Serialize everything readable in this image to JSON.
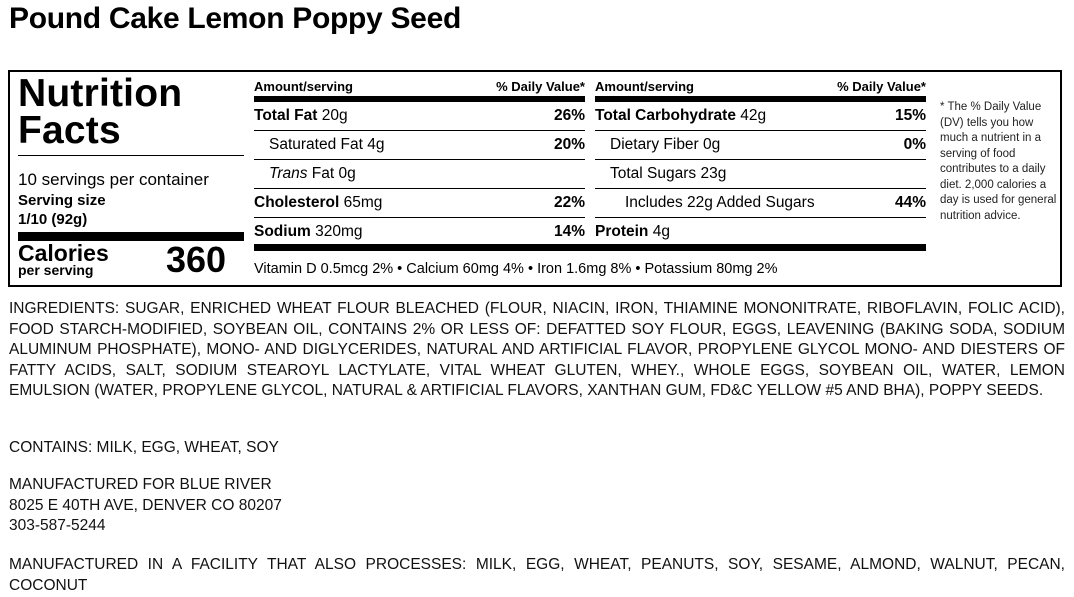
{
  "product_title": "Pound Cake Lemon Poppy Seed",
  "nutrition": {
    "heading": [
      "Nutrition",
      "Facts"
    ],
    "servings_per_container": "10 servings per container",
    "serving_size_label": "Serving size",
    "serving_size_value": "1/10 (92g)",
    "calories_label": "Calories",
    "calories_sub": "per serving",
    "calories_value": "360",
    "col_header_amount": "Amount/serving",
    "col_header_dv": "% Daily Value*",
    "left_rows": [
      {
        "name": "Total Fat",
        "amount": "20g",
        "dv": "26%",
        "bold": true
      },
      {
        "name": "Saturated Fat",
        "amount": "4g",
        "dv": "20%",
        "bold": false
      },
      {
        "name_italic": "Trans",
        "name": " Fat",
        "amount": "0g",
        "dv": "",
        "bold": false
      },
      {
        "name": "Cholesterol",
        "amount": "65mg",
        "dv": "22%",
        "bold": true
      },
      {
        "name": "Sodium",
        "amount": "320mg",
        "dv": "14%",
        "bold": true
      }
    ],
    "right_rows": [
      {
        "name": "Total Carbohydrate",
        "amount": "42g",
        "dv": "15%",
        "bold": true
      },
      {
        "name": "Dietary Fiber",
        "amount": "0g",
        "dv": "0%",
        "bold": false
      },
      {
        "name": "Total Sugars",
        "amount": "23g",
        "dv": "",
        "bold": false
      },
      {
        "name": "Includes 22g Added Sugars",
        "amount": "",
        "dv": "44%",
        "bold": false
      },
      {
        "name": "Protein",
        "amount": "4g",
        "dv": "",
        "bold": true
      }
    ],
    "vitamins_line": "Vitamin D 0.5mcg 2% • Calcium 60mg 4% • Iron 1.6mg 8% • Potassium 80mg 2%",
    "footnote": "* The % Daily Value (DV) tells you how much a nutrient in a serving of food contributes to a daily diet. 2,000 calories a day is used for general nutrition advice."
  },
  "ingredients": "INGREDIENTS: SUGAR, ENRICHED WHEAT FLOUR BLEACHED (FLOUR, NIACIN, IRON, THIAMINE MONONITRATE, RIBOFLAVIN, FOLIC ACID), FOOD STARCH-MODIFIED, SOYBEAN OIL, CONTAINS 2% OR LESS OF: DEFATTED SOY FLOUR, EGGS, LEAVENING (BAKING SODA, SODIUM ALUMINUM PHOSPHATE), MONO- AND DIGLYCERIDES, NATURAL AND ARTIFICIAL FLAVOR, PROPYLENE GLYCOL MONO- AND DIESTERS OF FATTY ACIDS, SALT, SODIUM STEAROYL LACTYLATE, VITAL WHEAT GLUTEN, WHEY., WHOLE EGGS, SOYBEAN OIL, WATER, LEMON EMULSION (WATER, PROPYLENE GLYCOL, NATURAL & ARTIFICIAL FLAVORS, XANTHAN GUM, FD&C YELLOW #5 AND BHA), POPPY SEEDS.",
  "contains": "CONTAINS: MILK, EGG, WHEAT, SOY",
  "manufacturer": {
    "line1": "MANUFACTURED FOR BLUE RIVER",
    "line2": "8025 E 40TH AVE, DENVER CO 80207",
    "line3": "303-587-5244"
  },
  "facility": "MANUFACTURED IN A FACILITY THAT ALSO PROCESSES: MILK, EGG, WHEAT, PEANUTS, SOY, SESAME, ALMOND, WALNUT, PECAN, COCONUT"
}
